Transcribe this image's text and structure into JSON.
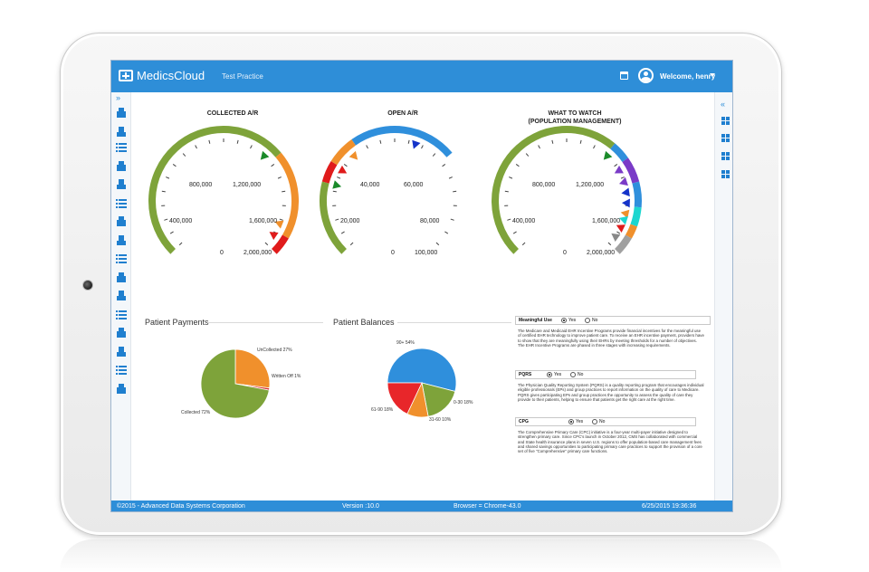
{
  "header": {
    "app_name": "MedicsCloud",
    "practice": "Test Practice",
    "welcome": "Welcome, henry"
  },
  "left_nav": {
    "expand": "»",
    "icons": [
      "home-icon",
      "user-icon",
      "list-icon",
      "history-icon",
      "transfer-icon",
      "hospital-icon",
      "billing-icon",
      "tools-icon",
      "pills-icon",
      "edit-icon",
      "users-icon",
      "document-icon",
      "wheelchair-icon",
      "person-icon",
      "family-icon",
      "group-icon"
    ]
  },
  "right_nav": {
    "collapse": "«",
    "icons": [
      "dashboard-icon",
      "settings-icon",
      "wrench-icon",
      "book-icon"
    ]
  },
  "gauges": [
    {
      "title": "COLLECTED A/R",
      "labels": [
        "0",
        "400,000",
        "800,000",
        "1,200,000",
        "1,600,000",
        "2,000,000"
      ]
    },
    {
      "title": "OPEN A/R",
      "labels": [
        "0",
        "20,000",
        "40,000",
        "60,000",
        "80,000",
        "100,000"
      ]
    },
    {
      "title": "WHAT TO WATCH\n(POPULATION MANAGEMENT)",
      "labels": [
        "0",
        "400,000",
        "800,000",
        "1,200,000",
        "1,600,000",
        "2,000,000"
      ]
    }
  ],
  "patient_payments": {
    "title": "Patient Payments",
    "slices": [
      {
        "label": "Collected 72%",
        "value": 72,
        "color": "#7ea33a"
      },
      {
        "label": "UnCollected 27%",
        "value": 27,
        "color": "#f0902c"
      },
      {
        "label": "Written Off 1%",
        "value": 1,
        "color": "#d42a2a"
      }
    ]
  },
  "patient_balances": {
    "title": "Patient Balances",
    "slices": [
      {
        "label": "90+ 54%",
        "value": 54,
        "color": "#2f8fdc"
      },
      {
        "label": "0-30 18%",
        "value": 18,
        "color": "#7ea33a"
      },
      {
        "label": "31-60 10%",
        "value": 10,
        "color": "#f0902c"
      },
      {
        "label": "61-90 18%",
        "value": 18,
        "color": "#e8262a"
      }
    ]
  },
  "programs": {
    "yes": "Yes",
    "no": "No",
    "items": [
      {
        "name": "Meaningful Use",
        "text": "The Medicare and Medicaid EHR Incentive Programs provide financial incentives for the meaningful use of certified EHR technology to improve patient care. To receive an EHR incentive payment, providers have to show that they are meaningfully using their EHRs by meeting thresholds for a number of objectives. The EHR Incentive Programs are phased in three stages with increasing requirements."
      },
      {
        "name": "PQRS",
        "text": "The Physician Quality Reporting System (PQRS) is a quality reporting program that encourages individual eligible professionals (EPs) and group practices to report information on the quality of care to Medicare. PQRS gives participating EPs and group practices the opportunity to assess the quality of care they provide to their patients, helping to ensure that patients get the right care at the right time."
      },
      {
        "name": "CPG",
        "text": "The Comprehensive Primary Care (CPC) initiative is a four-year multi-payer initiative designed to strengthen primary care. Since CPC's launch in October 2012, CMS has collaborated with commercial and State health insurance plans in seven U.S. regions to offer population-based care management fees and shared savings opportunities to participating primary care practices to support the provision of a core set of five \"Comprehensive\" primary care functions."
      }
    ]
  },
  "footer": {
    "copyright": "©2015 - Advanced Data Systems Corporation",
    "version": "Version :10.0",
    "browser": "Browser = Chrome-43.0",
    "datetime": "6/25/2015 19:36:36"
  }
}
